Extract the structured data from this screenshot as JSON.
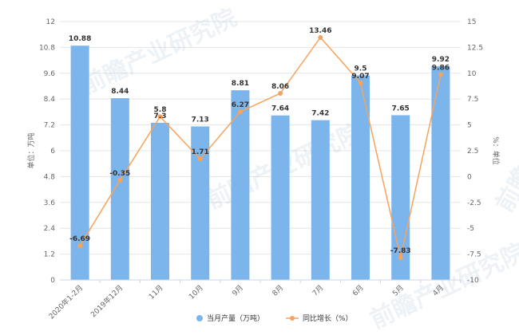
{
  "chart_data": {
    "type": "bar+line",
    "categories": [
      "2020年1-2月",
      "2019年12月",
      "11月",
      "10月",
      "9月",
      "8月",
      "7月",
      "6月",
      "5月",
      "4月"
    ],
    "series": [
      {
        "name": "当月产量（万吨）",
        "type": "bar",
        "axis": "left",
        "color": "#7cb5ec",
        "values": [
          10.88,
          8.44,
          7.3,
          7.13,
          8.81,
          7.64,
          7.42,
          9.5,
          7.65,
          9.92
        ],
        "labels": [
          "10.88",
          "8.44",
          "7.3",
          "7.13",
          "8.81",
          "7.64",
          "7.42",
          "9.5",
          "7.65",
          "9.92"
        ]
      },
      {
        "name": "同比增长（%）",
        "type": "line",
        "axis": "right",
        "color": "#f7a35c",
        "values": [
          -6.69,
          -0.35,
          5.8,
          1.71,
          6.27,
          8.06,
          13.46,
          9.07,
          -7.83,
          9.86
        ],
        "labels": [
          "-6.69",
          "-0.35",
          "5.8",
          "1.71",
          "6.27",
          "8.06",
          "13.46",
          "9.07",
          "-7.83",
          "9.86"
        ]
      }
    ],
    "y_left": {
      "label": "单位：万吨",
      "range": [
        0,
        12
      ],
      "ticks": [
        "0",
        "1.2",
        "2.4",
        "3.6",
        "4.8",
        "6",
        "7.2",
        "8.4",
        "9.6",
        "10.8",
        "12"
      ]
    },
    "y_right": {
      "label": "%：单位",
      "range": [
        -10,
        15
      ],
      "ticks": [
        "-10",
        "-7.5",
        "-5",
        "-2.5",
        "0",
        "2.5",
        "5",
        "7.5",
        "10",
        "12.5",
        "15"
      ]
    },
    "grid": true,
    "legend": "bottom-center"
  },
  "watermark": "前瞻产业研究院"
}
